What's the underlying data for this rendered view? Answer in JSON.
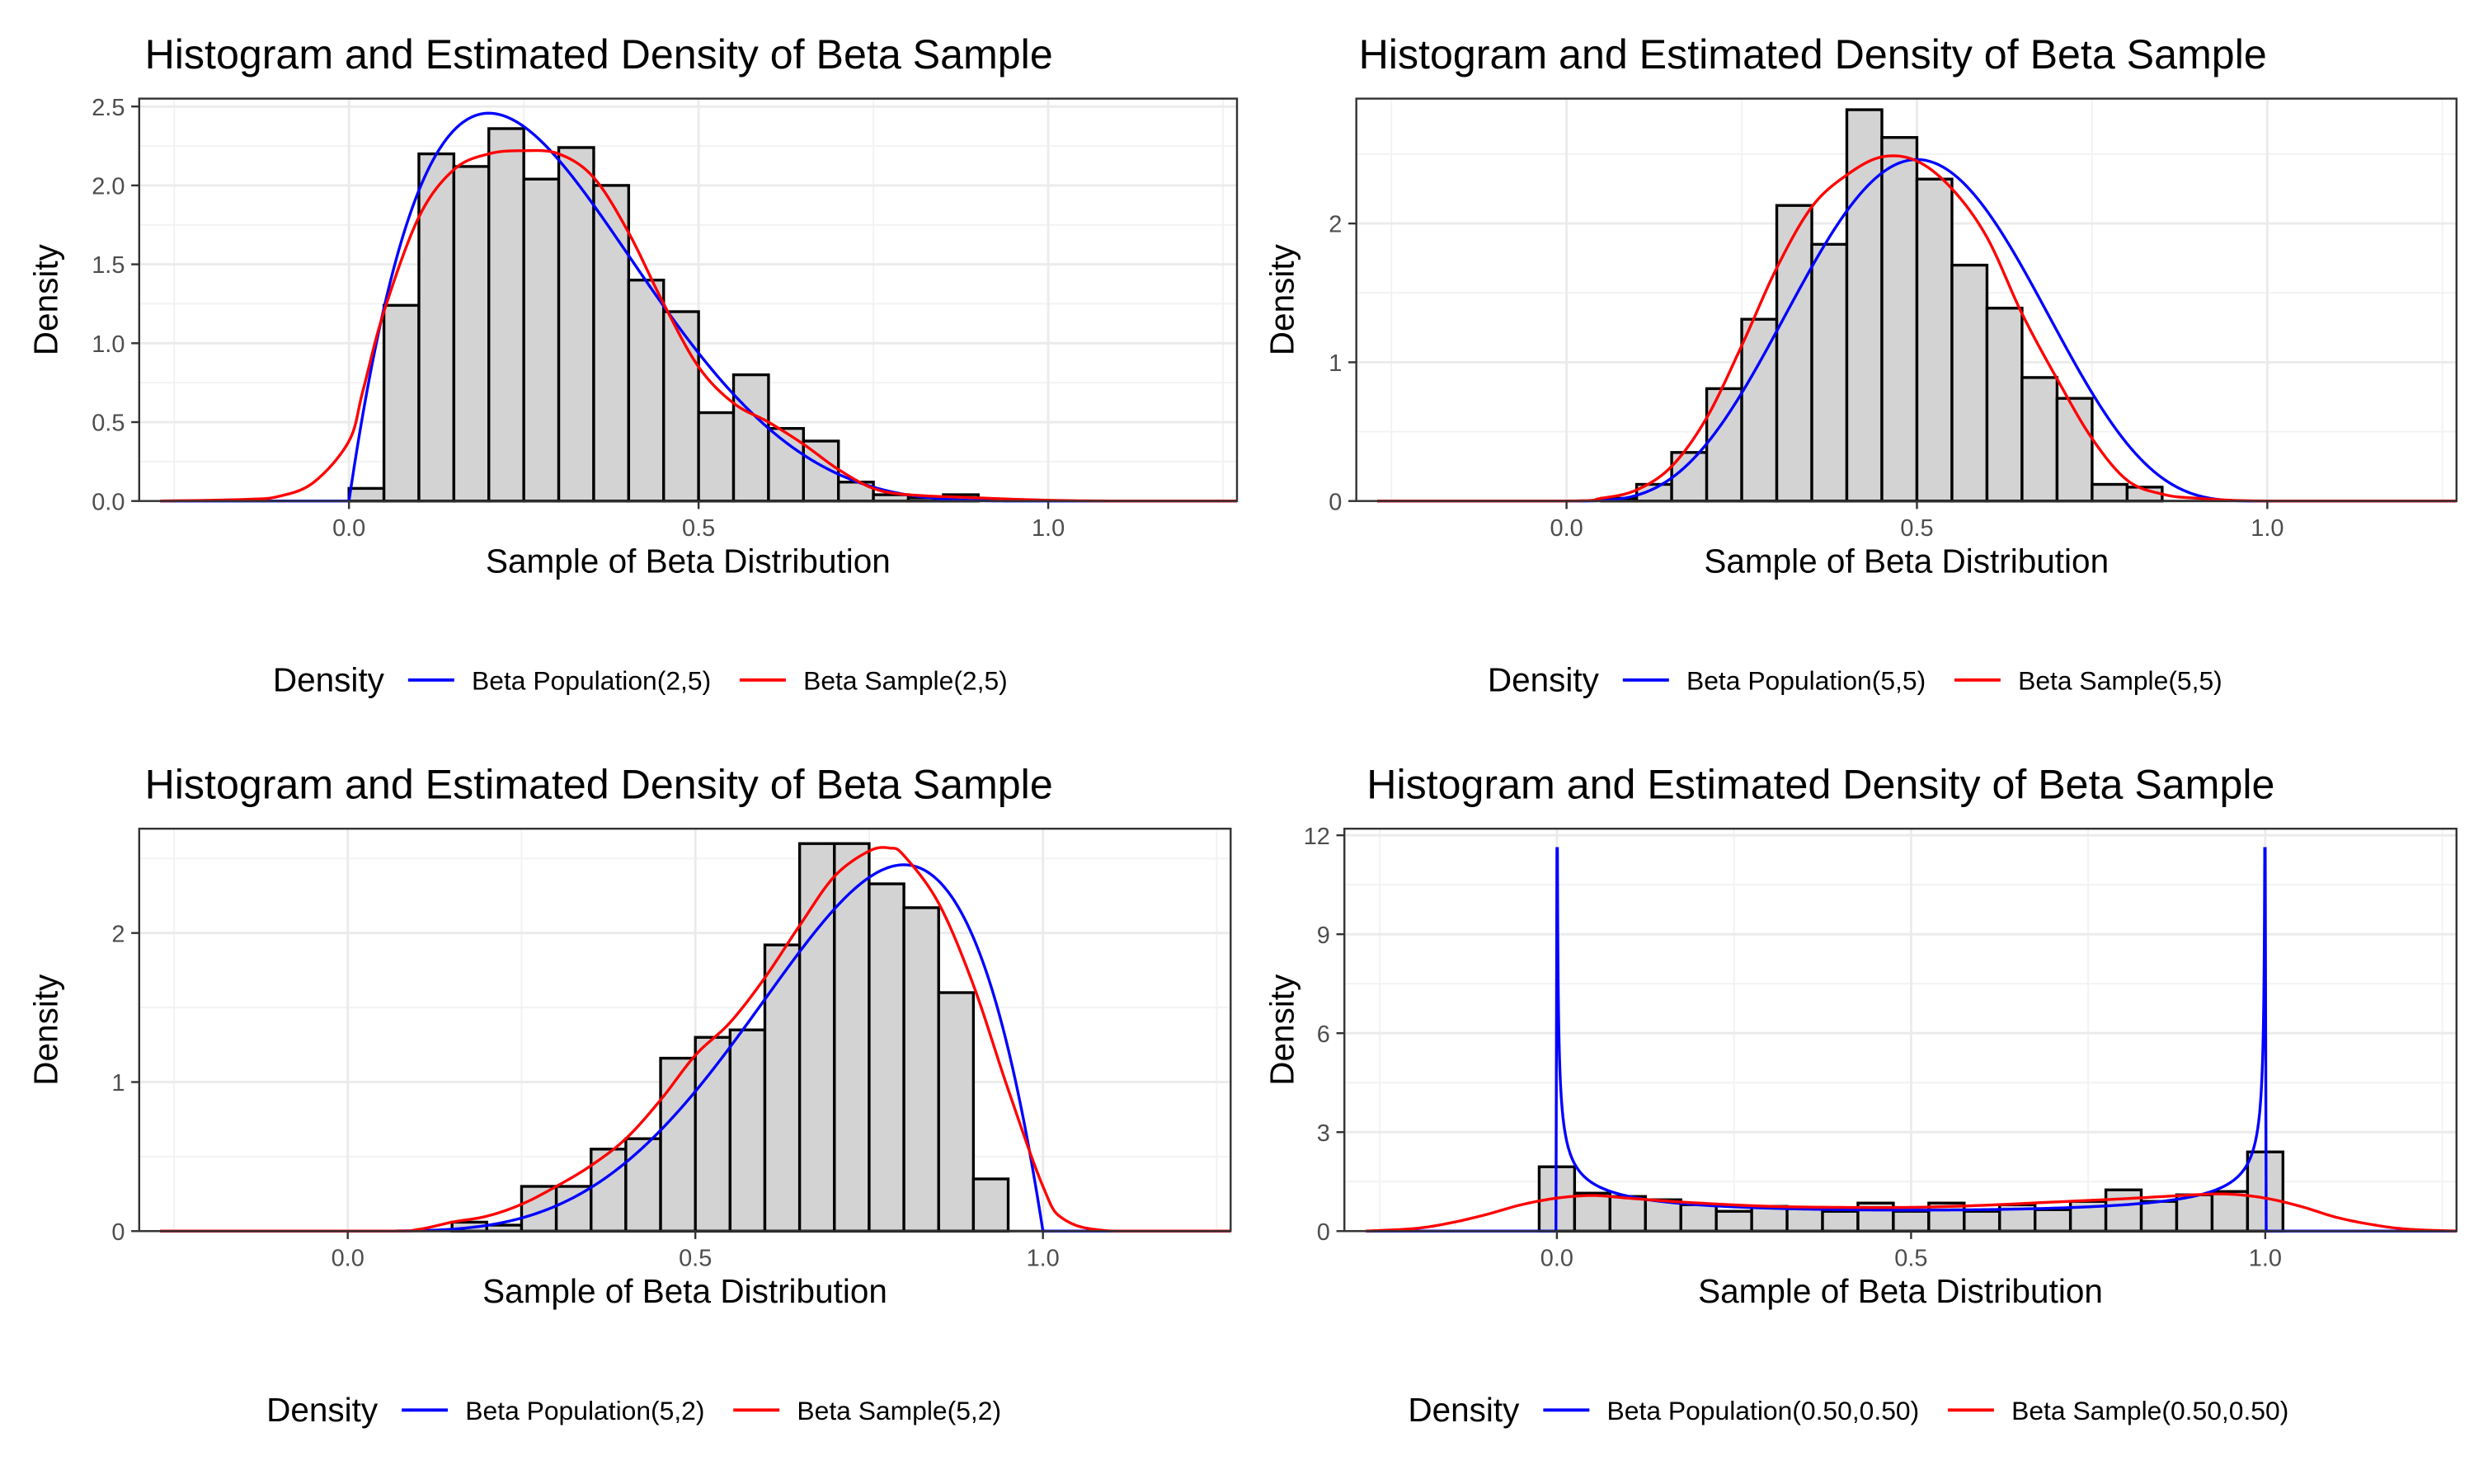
{
  "chart_data": [
    {
      "type": "histogram+density",
      "title": "Histogram and Estimated Density of Beta Sample",
      "xlabel": "Sample of Beta Distribution",
      "ylabel": "Density",
      "xlim": [
        -0.3,
        1.27
      ],
      "ylim": [
        0,
        2.55
      ],
      "xticks": [
        0,
        0.5,
        1
      ],
      "xtick_labels": [
        "0.0",
        "0.5",
        "1.0"
      ],
      "yticks": [
        0,
        0.5,
        1,
        1.5,
        2,
        2.5
      ],
      "ytick_labels": [
        "0.0",
        "0.5",
        "1.0",
        "1.5",
        "2.0",
        "2.5"
      ],
      "grid": true,
      "legend_position": "bottom",
      "legend_title": "Density",
      "bin_width": 0.05,
      "bins": [
        {
          "x": 0.0,
          "y": 0.08
        },
        {
          "x": 0.05,
          "y": 1.24
        },
        {
          "x": 0.1,
          "y": 2.2
        },
        {
          "x": 0.15,
          "y": 2.12
        },
        {
          "x": 0.2,
          "y": 2.36
        },
        {
          "x": 0.25,
          "y": 2.04
        },
        {
          "x": 0.3,
          "y": 2.24
        },
        {
          "x": 0.35,
          "y": 2.0
        },
        {
          "x": 0.4,
          "y": 1.4
        },
        {
          "x": 0.45,
          "y": 1.2
        },
        {
          "x": 0.5,
          "y": 0.56
        },
        {
          "x": 0.55,
          "y": 0.8
        },
        {
          "x": 0.6,
          "y": 0.46
        },
        {
          "x": 0.65,
          "y": 0.38
        },
        {
          "x": 0.7,
          "y": 0.12
        },
        {
          "x": 0.75,
          "y": 0.04
        },
        {
          "x": 0.8,
          "y": 0.02
        },
        {
          "x": 0.85,
          "y": 0.04
        }
      ],
      "series": [
        {
          "name": "Beta Population(2,5)",
          "color": "#0000ff",
          "kind": "beta",
          "a": 2,
          "b": 5,
          "x_range": [
            -0.27,
            1.27
          ]
        },
        {
          "name": "Beta Sample(2,5)",
          "color": "#ff0000",
          "kind": "points",
          "points": [
            [
              -0.27,
              0
            ],
            [
              -0.15,
              0.01
            ],
            [
              -0.1,
              0.03
            ],
            [
              -0.05,
              0.12
            ],
            [
              0,
              0.38
            ],
            [
              0.02,
              0.7
            ],
            [
              0.05,
              1.2
            ],
            [
              0.1,
              1.8
            ],
            [
              0.15,
              2.1
            ],
            [
              0.2,
              2.2
            ],
            [
              0.25,
              2.22
            ],
            [
              0.3,
              2.2
            ],
            [
              0.35,
              2.05
            ],
            [
              0.4,
              1.7
            ],
            [
              0.45,
              1.25
            ],
            [
              0.5,
              0.85
            ],
            [
              0.55,
              0.62
            ],
            [
              0.6,
              0.5
            ],
            [
              0.65,
              0.36
            ],
            [
              0.7,
              0.2
            ],
            [
              0.75,
              0.08
            ],
            [
              0.8,
              0.04
            ],
            [
              0.9,
              0.02
            ],
            [
              1.0,
              0.005
            ],
            [
              1.1,
              0
            ],
            [
              1.27,
              0
            ]
          ]
        }
      ]
    },
    {
      "type": "histogram+density",
      "title": "Histogram and Estimated Density of Beta Sample",
      "xlabel": "Sample of Beta Distribution",
      "ylabel": "Density",
      "xlim": [
        -0.3,
        1.27
      ],
      "ylim": [
        0,
        2.9
      ],
      "xticks": [
        0,
        0.5,
        1
      ],
      "xtick_labels": [
        "0.0",
        "0.5",
        "1.0"
      ],
      "yticks": [
        0,
        1,
        2
      ],
      "ytick_labels": [
        "0",
        "1",
        "2"
      ],
      "grid": true,
      "legend_position": "bottom",
      "legend_title": "Density",
      "bin_width": 0.05,
      "bins": [
        {
          "x": 0.05,
          "y": 0.02
        },
        {
          "x": 0.1,
          "y": 0.12
        },
        {
          "x": 0.15,
          "y": 0.35
        },
        {
          "x": 0.2,
          "y": 0.81
        },
        {
          "x": 0.25,
          "y": 1.31
        },
        {
          "x": 0.3,
          "y": 2.13
        },
        {
          "x": 0.35,
          "y": 1.85
        },
        {
          "x": 0.4,
          "y": 2.82
        },
        {
          "x": 0.45,
          "y": 2.62
        },
        {
          "x": 0.5,
          "y": 2.32
        },
        {
          "x": 0.55,
          "y": 1.7
        },
        {
          "x": 0.6,
          "y": 1.39
        },
        {
          "x": 0.65,
          "y": 0.89
        },
        {
          "x": 0.7,
          "y": 0.74
        },
        {
          "x": 0.75,
          "y": 0.12
        },
        {
          "x": 0.8,
          "y": 0.1
        }
      ],
      "series": [
        {
          "name": "Beta Population(5,5)",
          "color": "#0000ff",
          "kind": "beta",
          "a": 5,
          "b": 5,
          "x_range": [
            -0.27,
            1.27
          ]
        },
        {
          "name": "Beta Sample(5,5)",
          "color": "#ff0000",
          "kind": "points",
          "points": [
            [
              -0.27,
              0
            ],
            [
              0.0,
              0
            ],
            [
              0.05,
              0.02
            ],
            [
              0.1,
              0.08
            ],
            [
              0.15,
              0.25
            ],
            [
              0.2,
              0.6
            ],
            [
              0.25,
              1.12
            ],
            [
              0.3,
              1.68
            ],
            [
              0.35,
              2.12
            ],
            [
              0.4,
              2.35
            ],
            [
              0.45,
              2.48
            ],
            [
              0.5,
              2.45
            ],
            [
              0.55,
              2.25
            ],
            [
              0.6,
              1.9
            ],
            [
              0.65,
              1.35
            ],
            [
              0.7,
              0.88
            ],
            [
              0.75,
              0.45
            ],
            [
              0.8,
              0.15
            ],
            [
              0.85,
              0.05
            ],
            [
              0.9,
              0.02
            ],
            [
              1.0,
              0
            ],
            [
              1.27,
              0
            ]
          ]
        }
      ]
    },
    {
      "type": "histogram+density",
      "title": "Histogram and Estimated Density of Beta Sample",
      "xlabel": "Sample of Beta Distribution",
      "ylabel": "Density",
      "xlim": [
        -0.3,
        1.27
      ],
      "ylim": [
        0,
        2.7
      ],
      "xticks": [
        0,
        0.5,
        1
      ],
      "xtick_labels": [
        "0.0",
        "0.5",
        "1.0"
      ],
      "yticks": [
        0,
        1,
        2
      ],
      "ytick_labels": [
        "0",
        "1",
        "2"
      ],
      "grid": true,
      "legend_position": "bottom",
      "legend_title": "Density",
      "bin_width": 0.05,
      "bins": [
        {
          "x": 0.15,
          "y": 0.06
        },
        {
          "x": 0.2,
          "y": 0.04
        },
        {
          "x": 0.25,
          "y": 0.3
        },
        {
          "x": 0.3,
          "y": 0.3
        },
        {
          "x": 0.35,
          "y": 0.55
        },
        {
          "x": 0.4,
          "y": 0.62
        },
        {
          "x": 0.45,
          "y": 1.16
        },
        {
          "x": 0.5,
          "y": 1.3
        },
        {
          "x": 0.55,
          "y": 1.35
        },
        {
          "x": 0.6,
          "y": 1.92
        },
        {
          "x": 0.65,
          "y": 2.6
        },
        {
          "x": 0.7,
          "y": 2.6
        },
        {
          "x": 0.75,
          "y": 2.33
        },
        {
          "x": 0.8,
          "y": 2.17
        },
        {
          "x": 0.85,
          "y": 1.6
        },
        {
          "x": 0.9,
          "y": 0.35
        }
      ],
      "series": [
        {
          "name": "Beta Population(5,2)",
          "color": "#0000ff",
          "kind": "beta",
          "a": 5,
          "b": 2,
          "x_range": [
            -0.27,
            1.27
          ]
        },
        {
          "name": "Beta Sample(5,2)",
          "color": "#ff0000",
          "kind": "points",
          "points": [
            [
              -0.27,
              0
            ],
            [
              0.05,
              0
            ],
            [
              0.1,
              0.01
            ],
            [
              0.15,
              0.06
            ],
            [
              0.2,
              0.1
            ],
            [
              0.25,
              0.18
            ],
            [
              0.3,
              0.3
            ],
            [
              0.35,
              0.44
            ],
            [
              0.4,
              0.62
            ],
            [
              0.45,
              0.88
            ],
            [
              0.5,
              1.18
            ],
            [
              0.55,
              1.4
            ],
            [
              0.6,
              1.7
            ],
            [
              0.65,
              2.05
            ],
            [
              0.7,
              2.38
            ],
            [
              0.75,
              2.55
            ],
            [
              0.78,
              2.57
            ],
            [
              0.8,
              2.52
            ],
            [
              0.85,
              2.2
            ],
            [
              0.9,
              1.65
            ],
            [
              0.95,
              0.95
            ],
            [
              1.0,
              0.3
            ],
            [
              1.03,
              0.08
            ],
            [
              1.1,
              0
            ],
            [
              1.27,
              0
            ]
          ]
        }
      ]
    },
    {
      "type": "histogram+density",
      "title": "Histogram and Estimated Density of Beta Sample",
      "xlabel": "Sample of Beta Distribution",
      "ylabel": "Density",
      "xlim": [
        -0.3,
        1.27
      ],
      "ylim": [
        0,
        12.2
      ],
      "xticks": [
        0,
        0.5,
        1
      ],
      "xtick_labels": [
        "0.0",
        "0.5",
        "1.0"
      ],
      "yticks": [
        0,
        3,
        6,
        9,
        12
      ],
      "ytick_labels": [
        "0",
        "3",
        "6",
        "9",
        "12"
      ],
      "grid": true,
      "legend_position": "bottom",
      "legend_title": "Density",
      "bin_width": 0.05,
      "bins": [
        {
          "x": -0.025,
          "y": 1.95
        },
        {
          "x": 0.025,
          "y": 1.15
        },
        {
          "x": 0.075,
          "y": 1.05
        },
        {
          "x": 0.125,
          "y": 0.95
        },
        {
          "x": 0.175,
          "y": 0.8
        },
        {
          "x": 0.225,
          "y": 0.6
        },
        {
          "x": 0.275,
          "y": 0.75
        },
        {
          "x": 0.325,
          "y": 0.7
        },
        {
          "x": 0.375,
          "y": 0.6
        },
        {
          "x": 0.425,
          "y": 0.85
        },
        {
          "x": 0.475,
          "y": 0.6
        },
        {
          "x": 0.525,
          "y": 0.85
        },
        {
          "x": 0.575,
          "y": 0.6
        },
        {
          "x": 0.625,
          "y": 0.8
        },
        {
          "x": 0.675,
          "y": 0.65
        },
        {
          "x": 0.725,
          "y": 0.9
        },
        {
          "x": 0.775,
          "y": 1.25
        },
        {
          "x": 0.825,
          "y": 0.9
        },
        {
          "x": 0.875,
          "y": 1.1
        },
        {
          "x": 0.925,
          "y": 1.2
        },
        {
          "x": 0.975,
          "y": 2.4
        }
      ],
      "series": [
        {
          "name": "Beta Population(0.50,0.50)",
          "color": "#0000ff",
          "kind": "beta",
          "a": 0.5,
          "b": 0.5,
          "x_range": [
            -0.27,
            1.27
          ],
          "y_cap": 11.6
        },
        {
          "name": "Beta Sample(0.50,0.50)",
          "color": "#ff0000",
          "kind": "points",
          "points": [
            [
              -0.27,
              0
            ],
            [
              -0.2,
              0.08
            ],
            [
              -0.15,
              0.25
            ],
            [
              -0.1,
              0.5
            ],
            [
              -0.05,
              0.8
            ],
            [
              0,
              1.0
            ],
            [
              0.05,
              1.08
            ],
            [
              0.1,
              1.0
            ],
            [
              0.15,
              0.92
            ],
            [
              0.2,
              0.85
            ],
            [
              0.3,
              0.75
            ],
            [
              0.4,
              0.72
            ],
            [
              0.5,
              0.72
            ],
            [
              0.6,
              0.78
            ],
            [
              0.7,
              0.88
            ],
            [
              0.8,
              0.98
            ],
            [
              0.9,
              1.1
            ],
            [
              0.95,
              1.12
            ],
            [
              1.0,
              1.0
            ],
            [
              1.05,
              0.75
            ],
            [
              1.1,
              0.42
            ],
            [
              1.15,
              0.2
            ],
            [
              1.2,
              0.06
            ],
            [
              1.27,
              0
            ]
          ]
        }
      ]
    }
  ]
}
